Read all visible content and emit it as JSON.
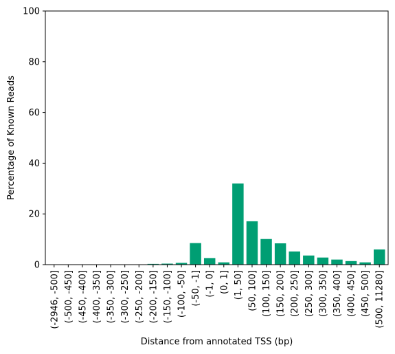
{
  "chart_data": {
    "type": "bar",
    "title": "",
    "xlabel": "Distance from annotated TSS (bp)",
    "ylabel": "Percentage of Known Reads",
    "ylim": [
      0,
      100
    ],
    "yticks": [
      0,
      20,
      40,
      60,
      80,
      100
    ],
    "grid": false,
    "bar_color": "#009e73",
    "categories": [
      "(-2946, -500]",
      "(-500, -450]",
      "(-450, -400]",
      "(-400, -350]",
      "(-350, -300]",
      "(-300, -250]",
      "(-250, -200]",
      "(-200, -150]",
      "(-150, -100]",
      "(-100, -50]",
      "(-50, -1]",
      "(-1, 0]",
      "(0, 1]",
      "(1, 50]",
      "(50, 100]",
      "(100, 150]",
      "(150, 200]",
      "(200, 250]",
      "(250, 300]",
      "(300, 350]",
      "(350, 400]",
      "(400, 450]",
      "(450, 500]",
      "(500, 11280]"
    ],
    "values": [
      0.1,
      0.05,
      0.05,
      0.05,
      0.05,
      0.1,
      0.1,
      0.3,
      0.4,
      0.7,
      8.5,
      2.6,
      0.9,
      32.0,
      17.1,
      10.1,
      8.4,
      5.2,
      3.6,
      2.8,
      2.0,
      1.4,
      0.9,
      6.0
    ]
  }
}
